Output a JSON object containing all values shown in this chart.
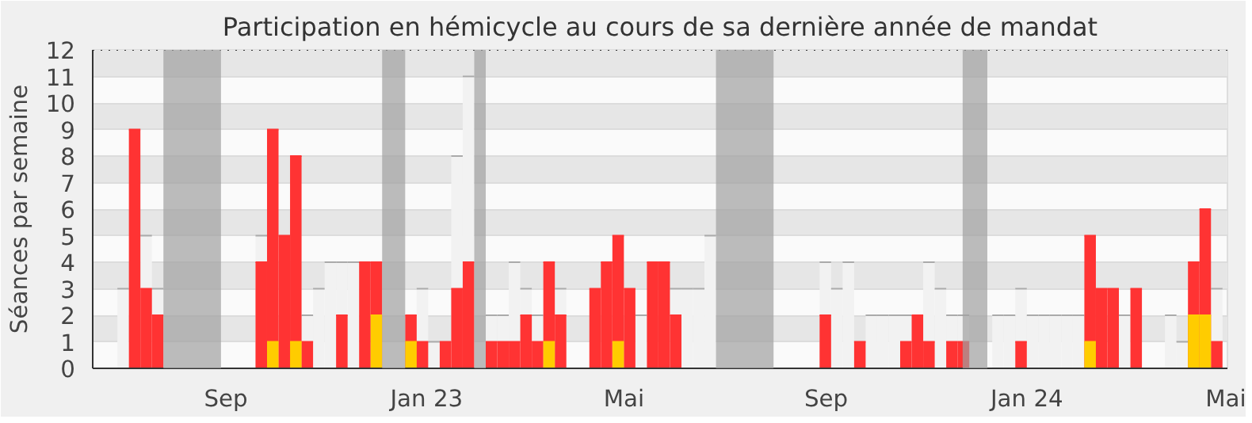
{
  "chart_data": {
    "type": "bar",
    "title": "Participation en hémicycle au cours de sa dernière année de mandat",
    "ylabel": "Séances par semaine",
    "xlim": [
      "2022-06-12",
      "2024-05-02"
    ],
    "xticks": [
      {
        "value": "2022-09-01",
        "label": "Sep"
      },
      {
        "value": "2023-01-01",
        "label": "Jan 23"
      },
      {
        "value": "2023-05-01",
        "label": "Mai"
      },
      {
        "value": "2023-09-01",
        "label": "Sep"
      },
      {
        "value": "2024-01-01",
        "label": "Jan 24"
      },
      {
        "value": "2024-05-01",
        "label": "Mai"
      }
    ],
    "ylim": [
      0,
      12
    ],
    "yticks": [
      0,
      1,
      2,
      3,
      4,
      5,
      6,
      7,
      8,
      9,
      10,
      11,
      12
    ],
    "grid": "y",
    "series": [
      {
        "color": "#f2f2f2",
        "x": [
          "2022-06-27",
          "2022-07-11",
          "2022-07-18",
          "2022-09-19",
          "2022-10-17",
          "2022-10-24",
          "2022-10-31",
          "2022-11-07",
          "2022-11-14",
          "2022-12-26",
          "2023-01-02",
          "2023-01-16",
          "2023-01-23",
          "2023-02-06",
          "2023-02-13",
          "2023-02-20",
          "2023-02-27",
          "2023-03-06",
          "2023-03-20",
          "2023-05-08",
          "2023-05-29",
          "2023-06-05",
          "2023-06-12",
          "2023-06-19",
          "2023-08-28",
          "2023-09-04",
          "2023-09-11",
          "2023-09-25",
          "2023-10-02",
          "2023-10-09",
          "2023-10-16",
          "2023-10-30",
          "2023-11-06",
          "2023-11-13",
          "2023-11-20",
          "2023-12-11",
          "2023-12-18",
          "2023-12-25",
          "2024-01-01",
          "2024-01-08",
          "2024-01-15",
          "2024-01-22",
          "2024-01-29",
          "2024-02-26",
          "2024-03-25",
          "2024-04-01",
          "2024-04-22"
        ],
        "values": [
          3,
          5,
          3,
          5,
          2,
          3,
          4,
          4,
          4,
          3,
          1,
          8,
          11,
          2,
          2,
          4,
          3,
          2,
          3,
          2,
          3,
          3,
          3,
          5,
          4,
          3,
          4,
          2,
          2,
          2,
          2,
          4,
          3,
          2,
          2,
          2,
          2,
          3,
          2,
          2,
          2,
          2,
          2,
          2,
          2,
          1,
          3
        ]
      },
      {
        "color": "#ff3333",
        "x": [
          "2022-07-04",
          "2022-07-11",
          "2022-07-18",
          "2022-09-19",
          "2022-09-26",
          "2022-10-03",
          "2022-10-10",
          "2022-10-17",
          "2022-11-07",
          "2022-11-21",
          "2022-11-28",
          "2022-12-19",
          "2022-12-26",
          "2023-01-09",
          "2023-01-16",
          "2023-01-23",
          "2023-02-06",
          "2023-02-13",
          "2023-02-20",
          "2023-02-27",
          "2023-03-06",
          "2023-03-13",
          "2023-03-20",
          "2023-04-10",
          "2023-04-17",
          "2023-04-24",
          "2023-05-01",
          "2023-05-15",
          "2023-05-22",
          "2023-05-29",
          "2023-08-28",
          "2023-09-18",
          "2023-10-16",
          "2023-10-23",
          "2023-10-30",
          "2023-11-13",
          "2023-11-20",
          "2023-12-25",
          "2024-02-05",
          "2024-02-12",
          "2024-02-19",
          "2024-03-04",
          "2024-04-08",
          "2024-04-15",
          "2024-04-22"
        ],
        "values": [
          9,
          3,
          2,
          4,
          9,
          5,
          8,
          1,
          2,
          4,
          4,
          2,
          1,
          1,
          3,
          4,
          1,
          1,
          1,
          2,
          1,
          4,
          2,
          3,
          4,
          5,
          3,
          4,
          4,
          2,
          2,
          1,
          1,
          2,
          1,
          1,
          1,
          1,
          5,
          3,
          3,
          3,
          4,
          6,
          1
        ]
      },
      {
        "color": "#ffcc00",
        "x": [
          "2022-09-26",
          "2022-10-10",
          "2022-11-28",
          "2022-12-19",
          "2023-03-13",
          "2023-04-24",
          "2024-02-05",
          "2024-04-08",
          "2024-04-15"
        ],
        "values": [
          1,
          1,
          2,
          1,
          1,
          1,
          1,
          2,
          2
        ]
      }
    ],
    "bands": [
      {
        "axis": "x",
        "from": "2022-07-25",
        "to": "2022-08-29",
        "color": "#a0a0a0"
      },
      {
        "axis": "x",
        "from": "2022-12-05",
        "to": "2022-12-19",
        "color": "#a0a0a0"
      },
      {
        "axis": "x",
        "from": "2023-01-30",
        "to": "2023-02-06",
        "color": "#a0a0a0"
      },
      {
        "axis": "x",
        "from": "2023-06-26",
        "to": "2023-07-31",
        "color": "#a0a0a0"
      },
      {
        "axis": "x",
        "from": "2023-11-23",
        "to": "2023-12-08",
        "color": "#a0a0a0"
      }
    ]
  }
}
